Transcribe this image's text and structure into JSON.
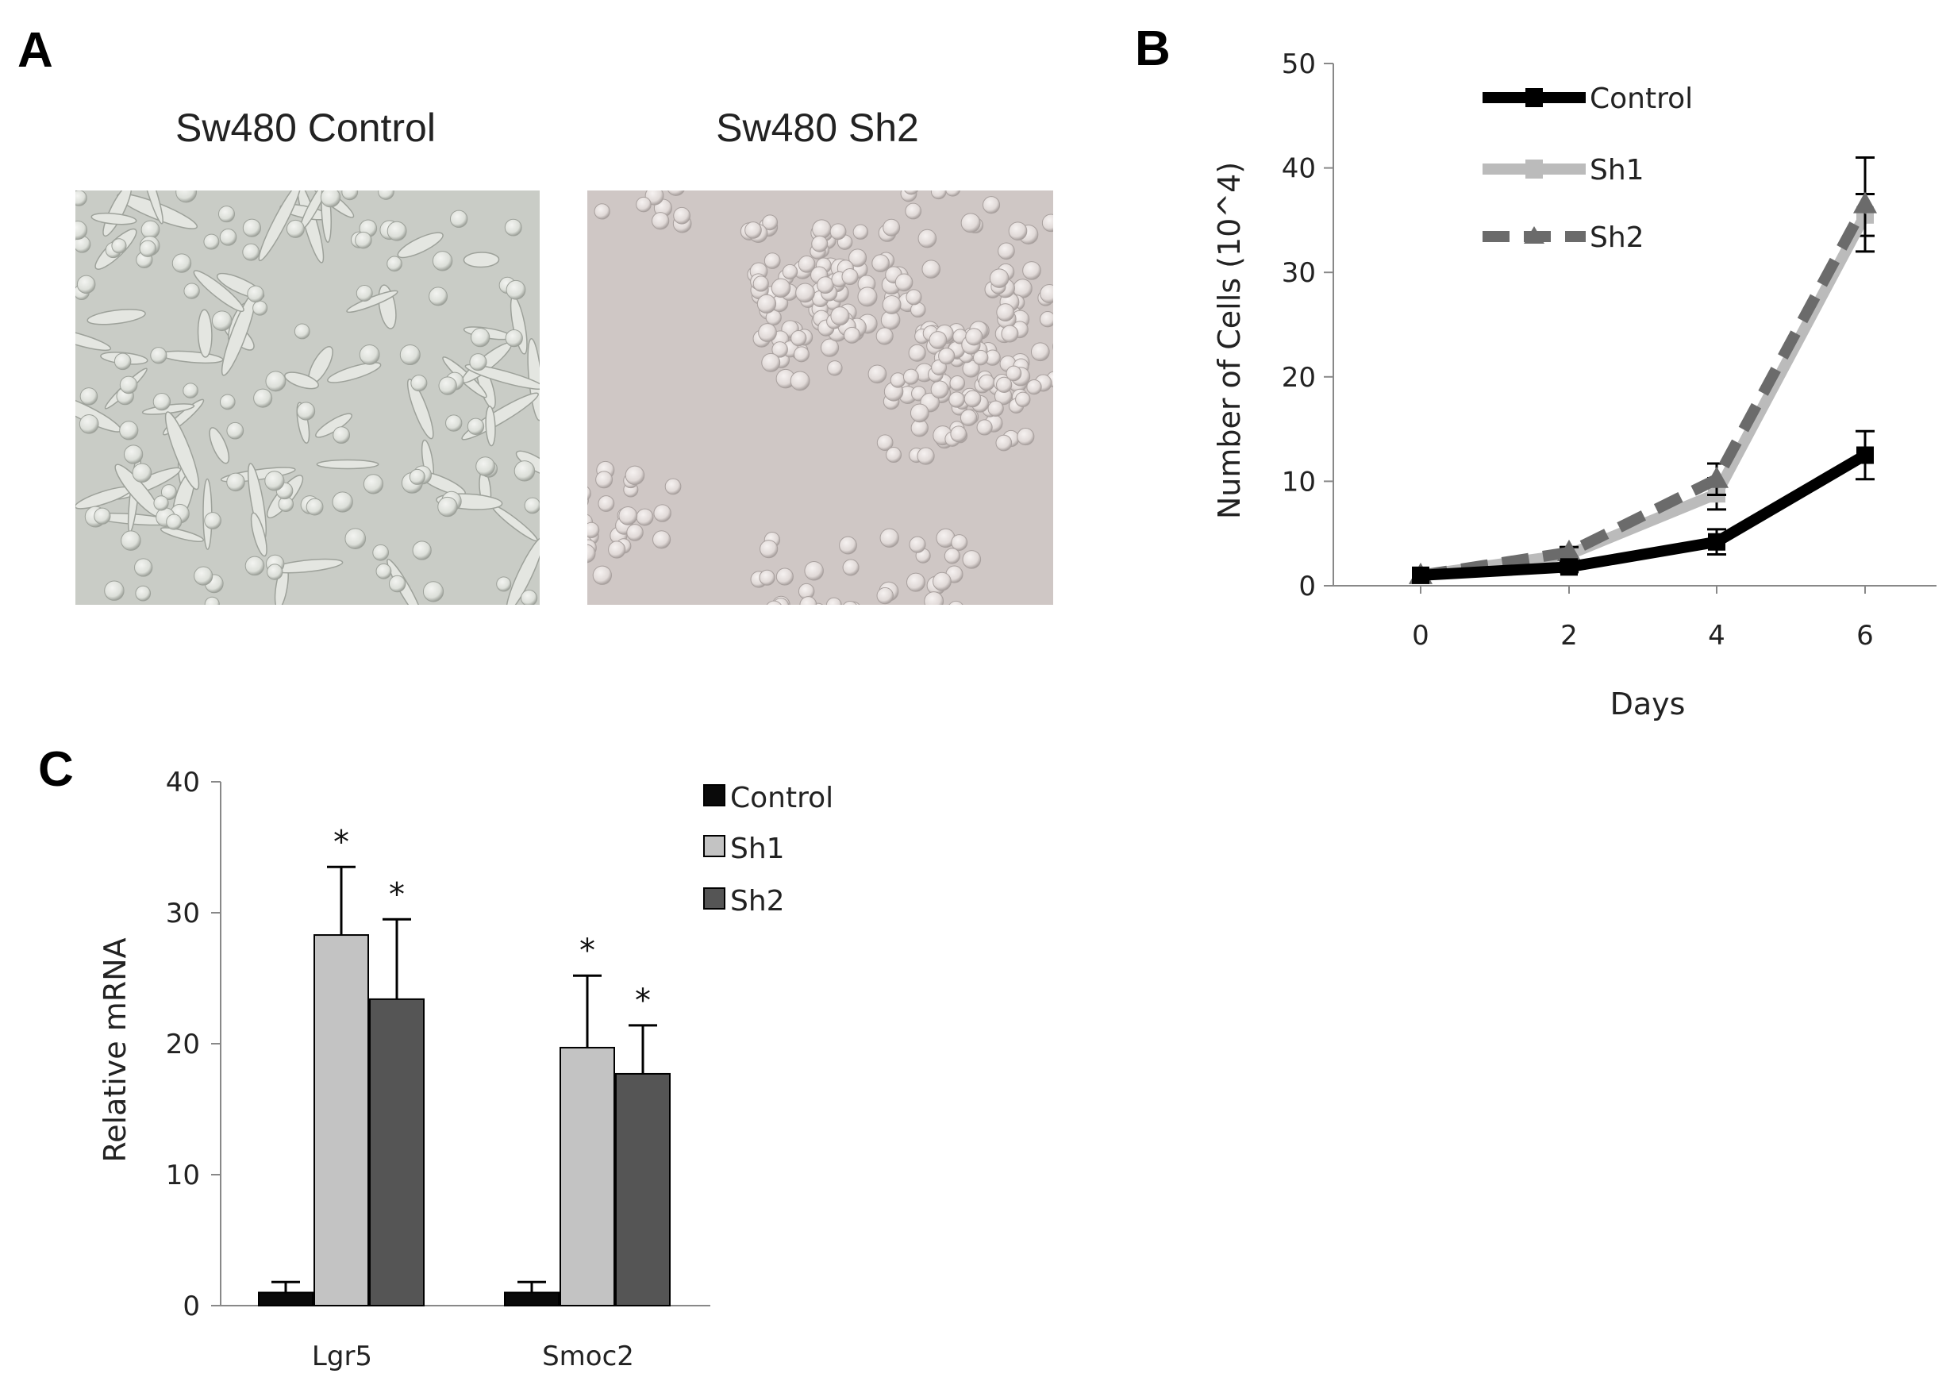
{
  "panels": {
    "a": {
      "letter": "A",
      "images": [
        {
          "title": "Sw480 Control",
          "bg": "#c9ccc6",
          "cell": "#e4e6e1",
          "shadow": "#9da19a"
        },
        {
          "title": "Sw480 Sh2",
          "bg": "#cfc7c5",
          "cell": "#e8e2e0",
          "shadow": "#a8a09e"
        }
      ]
    },
    "b": {
      "letter": "B"
    },
    "c": {
      "letter": "C"
    }
  },
  "chart_data": [
    {
      "id": "growth",
      "type": "line",
      "xlabel": "Days",
      "ylabel": "Number of Cells (10^4)",
      "x": [
        0,
        2,
        4,
        6
      ],
      "xticks": [
        "0",
        "2",
        "4",
        "6"
      ],
      "ylim": [
        0,
        50
      ],
      "yticks": [
        "0",
        "10",
        "20",
        "30",
        "40",
        "50"
      ],
      "legend_position": "top-left",
      "series": [
        {
          "name": "Control",
          "values": [
            1,
            1.8,
            4.2,
            12.5
          ],
          "errors": [
            0.3,
            0.5,
            1.2,
            2.3
          ],
          "color": "#000000",
          "dash": "none"
        },
        {
          "name": "Sh1",
          "values": [
            1,
            3,
            8.8,
            35.5
          ],
          "errors": [
            0.3,
            0.5,
            1.5,
            2.0
          ],
          "color": "#bbbbbb",
          "dash": "none"
        },
        {
          "name": "Sh2",
          "values": [
            1,
            3.2,
            10.2,
            36.5
          ],
          "errors": [
            0.3,
            0.5,
            1.5,
            4.5
          ],
          "color": "#6b6b6b",
          "dash": "long"
        }
      ]
    },
    {
      "id": "mrna",
      "type": "bar",
      "ylabel": "Relative  mRNA",
      "categories": [
        "Lgr5",
        "Smoc2"
      ],
      "ylim": [
        0,
        40
      ],
      "yticks": [
        "0",
        "10",
        "20",
        "30",
        "40"
      ],
      "legend_position": "top-right",
      "significance_marker": "*",
      "series": [
        {
          "name": "Control",
          "values": [
            1,
            1
          ],
          "errors": [
            0.8,
            0.8
          ],
          "color": "#0a0a0a",
          "significant": [
            false,
            false
          ]
        },
        {
          "name": "Sh1",
          "values": [
            28.3,
            19.7
          ],
          "errors": [
            5.2,
            5.5
          ],
          "color": "#c3c3c3",
          "significant": [
            true,
            true
          ]
        },
        {
          "name": "Sh2",
          "values": [
            23.4,
            17.7
          ],
          "errors": [
            6.1,
            3.7
          ],
          "color": "#555555",
          "significant": [
            true,
            true
          ]
        }
      ]
    }
  ]
}
